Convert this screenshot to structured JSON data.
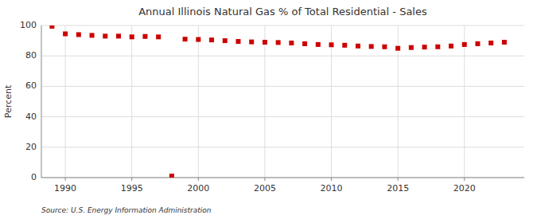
{
  "chart_data": {
    "type": "scatter",
    "title": "Annual Illinois Natural Gas % of Total Residential - Sales",
    "y_label": "Percent",
    "annotations": [
      "Source: U.S. Energy Information Administration"
    ],
    "x": [
      1989,
      1990,
      1991,
      1992,
      1993,
      1994,
      1995,
      1996,
      1997,
      1998,
      1999,
      2000,
      2001,
      2002,
      2003,
      2004,
      2005,
      2006,
      2007,
      2008,
      2009,
      2010,
      2011,
      2012,
      2013,
      2014,
      2015,
      2016,
      2017,
      2018,
      2019,
      2020,
      2021,
      2022,
      2023
    ],
    "values": [
      99.5,
      94.5,
      94.0,
      93.5,
      93.0,
      93.0,
      92.5,
      92.8,
      92.5,
      1.0,
      91.0,
      90.8,
      90.5,
      90.0,
      89.5,
      89.2,
      89.0,
      88.8,
      88.5,
      88.0,
      87.5,
      87.3,
      87.0,
      86.5,
      86.2,
      86.0,
      85.0,
      85.5,
      85.8,
      86.0,
      86.5,
      87.5,
      88.0,
      88.5,
      89.0
    ],
    "color": "#cc0000",
    "marker": "square",
    "xlim": [
      1988.2,
      2024.5
    ],
    "xticks": [
      1990,
      1995,
      2000,
      2005,
      2010,
      2015,
      2020
    ],
    "ylim": [
      0,
      100
    ],
    "yticks": [
      0,
      20,
      40,
      60,
      80,
      100
    ],
    "grid": true
  }
}
